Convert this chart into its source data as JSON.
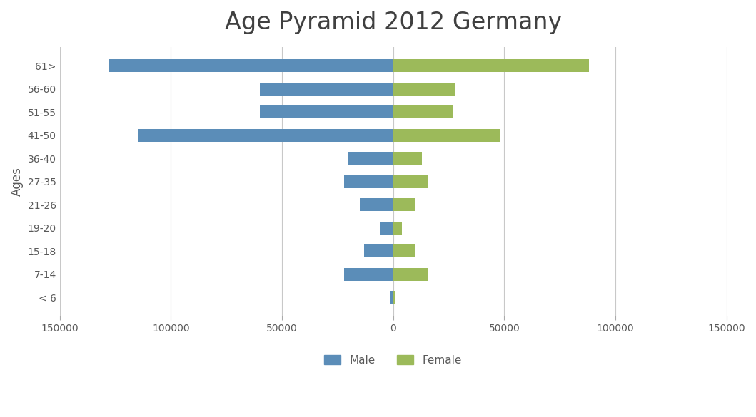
{
  "title": "Age Pyramid 2012 Germany",
  "age_groups": [
    "< 6",
    "7-14",
    "15-18",
    "19-20",
    "21-26",
    "27-35",
    "36-40",
    "41-50",
    "51-55",
    "56-60",
    "61>"
  ],
  "male": [
    1500,
    22000,
    13000,
    6000,
    15000,
    22000,
    20000,
    115000,
    60000,
    60000,
    128000
  ],
  "female": [
    1000,
    16000,
    10000,
    4000,
    10000,
    16000,
    13000,
    48000,
    27000,
    28000,
    88000
  ],
  "male_color": "#5b8db8",
  "female_color": "#9cba5a",
  "ylabel": "Ages",
  "xlim": [
    -150000,
    150000
  ],
  "xticks": [
    -150000,
    -100000,
    -50000,
    0,
    50000,
    100000,
    150000
  ],
  "xticklabels": [
    "150000",
    "100000",
    "50000",
    "0",
    "50000",
    "100000",
    "150000"
  ],
  "background_color": "#ffffff",
  "grid_color": "#c8c8c8",
  "title_fontsize": 24,
  "axis_label_fontsize": 12,
  "tick_fontsize": 10,
  "bar_height": 0.55,
  "legend_fontsize": 11
}
